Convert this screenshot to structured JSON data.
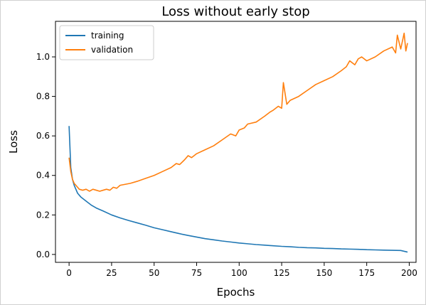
{
  "chart_data": {
    "type": "line",
    "title": "Loss without early stop",
    "xlabel": "Epochs",
    "ylabel": "Loss",
    "xlim": [
      -8,
      204
    ],
    "ylim": [
      -0.04,
      1.18
    ],
    "xticks": [
      0,
      25,
      50,
      75,
      100,
      125,
      150,
      175,
      200
    ],
    "yticks": [
      0.0,
      0.2,
      0.4,
      0.6,
      0.8,
      1.0
    ],
    "ytick_labels": [
      "0.0",
      "0.2",
      "0.4",
      "0.6",
      "0.8",
      "1.0"
    ],
    "grid": false,
    "legend_position": "upper-left",
    "series": [
      {
        "name": "training",
        "color": "#1f77b4",
        "x": [
          0,
          1,
          2,
          3,
          4,
          5,
          7,
          10,
          13,
          16,
          20,
          25,
          30,
          35,
          40,
          45,
          50,
          55,
          60,
          65,
          70,
          75,
          80,
          85,
          90,
          95,
          100,
          105,
          110,
          115,
          120,
          125,
          130,
          135,
          140,
          145,
          150,
          155,
          160,
          165,
          170,
          175,
          180,
          185,
          190,
          195,
          199
        ],
        "y": [
          0.65,
          0.44,
          0.38,
          0.35,
          0.33,
          0.31,
          0.29,
          0.27,
          0.25,
          0.235,
          0.22,
          0.2,
          0.185,
          0.172,
          0.16,
          0.148,
          0.135,
          0.125,
          0.115,
          0.105,
          0.096,
          0.088,
          0.08,
          0.074,
          0.068,
          0.063,
          0.058,
          0.054,
          0.05,
          0.047,
          0.044,
          0.041,
          0.039,
          0.036,
          0.034,
          0.033,
          0.031,
          0.03,
          0.028,
          0.027,
          0.026,
          0.024,
          0.023,
          0.022,
          0.021,
          0.02,
          0.012
        ]
      },
      {
        "name": "validation",
        "color": "#ff7f0e",
        "x": [
          0,
          1,
          2,
          3,
          4,
          5,
          6,
          8,
          10,
          12,
          14,
          16,
          18,
          20,
          22,
          24,
          26,
          28,
          30,
          33,
          36,
          40,
          45,
          50,
          55,
          60,
          63,
          65,
          68,
          70,
          72,
          75,
          80,
          85,
          90,
          95,
          98,
          100,
          103,
          105,
          110,
          115,
          118,
          120,
          123,
          125,
          126,
          128,
          130,
          135,
          140,
          145,
          150,
          155,
          160,
          163,
          165,
          168,
          170,
          172,
          175,
          180,
          185,
          190,
          192,
          193,
          195,
          196,
          197,
          198,
          199
        ],
        "y": [
          0.49,
          0.42,
          0.38,
          0.36,
          0.35,
          0.34,
          0.33,
          0.325,
          0.33,
          0.32,
          0.33,
          0.325,
          0.32,
          0.325,
          0.33,
          0.325,
          0.34,
          0.335,
          0.35,
          0.355,
          0.36,
          0.37,
          0.385,
          0.4,
          0.42,
          0.44,
          0.46,
          0.455,
          0.48,
          0.5,
          0.49,
          0.51,
          0.53,
          0.55,
          0.58,
          0.61,
          0.6,
          0.63,
          0.64,
          0.66,
          0.67,
          0.7,
          0.72,
          0.73,
          0.75,
          0.74,
          0.87,
          0.76,
          0.78,
          0.8,
          0.83,
          0.86,
          0.88,
          0.9,
          0.93,
          0.95,
          0.98,
          0.96,
          0.99,
          1.0,
          0.98,
          1.0,
          1.03,
          1.05,
          1.02,
          1.11,
          1.04,
          1.08,
          1.12,
          1.03,
          1.07
        ]
      }
    ]
  }
}
